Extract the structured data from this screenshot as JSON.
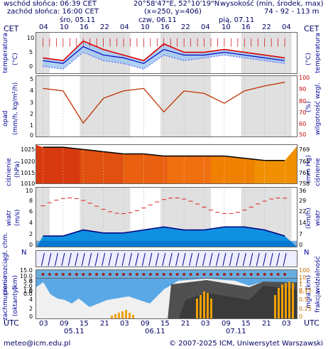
{
  "header": {
    "sunrise": "wschód słońca: 06:39 CET",
    "sunset": "zachód słońca: 16:00 CET",
    "coords": "20°58'47\"E, 52°10'19\"N",
    "grid": "(x=250,  y=406)",
    "alt_label": "wysokość (min, środek, max)",
    "alt_value": "74 - 92 - 113 m"
  },
  "tz_left": "CET",
  "tz_right": "CET",
  "tz_bottom_left": "UTC",
  "tz_bottom_right": "UTC",
  "days_top": [
    "śro, 05.11",
    "czw, 06.11",
    "pią, 07.11"
  ],
  "hours_top": [
    "04",
    "10",
    "16",
    "22",
    "04",
    "10",
    "16",
    "22",
    "04",
    "10",
    "16",
    "22",
    "04"
  ],
  "hours_bottom": [
    "03",
    "09",
    "15",
    "21",
    "03",
    "09",
    "15",
    "21",
    "03",
    "09",
    "15",
    "21",
    "03"
  ],
  "days_bottom": [
    "05.11",
    "06.11",
    "07.11"
  ],
  "panels": {
    "temp": {
      "label_left": "temperatura",
      "unit_left": "(°C)",
      "label_right": "temperatura",
      "unit_right": "(°C)",
      "ticks": [
        "10",
        "5",
        "0"
      ]
    },
    "precip": {
      "label_left": "opad",
      "unit_left": "(mm/h, kg/m²/h)",
      "label_right": "wilgotność wzgl.",
      "unit_right": "(%)",
      "ticks": [
        "5",
        "4",
        "3",
        "2",
        "1",
        "0"
      ],
      "ticks_right": [
        "100",
        "90",
        "80",
        "70",
        "60",
        "50"
      ]
    },
    "pressure": {
      "label_left": "ciśnienie",
      "unit_left": "(hPa)",
      "label_right": "ciśnienie",
      "unit_right": "(mm Hg)",
      "ticks": [
        "1025",
        "1020",
        "1015",
        "1010"
      ],
      "ticks_right": [
        "769",
        "765",
        "761",
        "758"
      ]
    },
    "wind": {
      "label_left": "wiatr",
      "unit_left": "(m/s)",
      "label_right": "wiatr",
      "unit_right": "(km/h)",
      "ticks": [
        "10",
        "8",
        "6",
        "4",
        "2",
        "0"
      ],
      "ticks_right": [
        "36",
        "29",
        "22",
        "14",
        "7",
        "0"
      ]
    },
    "winddir": {
      "label_left": "N",
      "label_right": "N"
    },
    "cloudbase": {
      "label_left": "pion. rozciągł. chm.",
      "unit_left": "(km)",
      "label_right": "widzialność",
      "unit_right": "(km)",
      "ticks": [
        "15.0",
        "10.0",
        "5.0",
        "2.0",
        "1.0",
        "0.0"
      ],
      "ticks_right": [
        "100",
        "10",
        "1",
        "0.1"
      ]
    },
    "clouds": {
      "label_left": "zachmurzenie",
      "unit_left": "(oktanty)",
      "label_right": "frakcja",
      "unit_right": "mgła",
      "ticks": [
        "8",
        "6",
        "4",
        "2",
        "0"
      ],
      "ticks_right": [
        "1",
        "0.75",
        "0.5",
        "0.25",
        "0"
      ]
    }
  },
  "footer": {
    "email": "meteo@icm.edu.pl",
    "copyright": "© 2007-2025 ICM, Uniwersytet Warszawski"
  },
  "chart_data": [
    {
      "type": "line",
      "title": "temperatura",
      "ylabel": "(°C)",
      "ylim": [
        -1,
        14
      ],
      "x_hours": [
        0,
        6,
        12,
        18,
        24,
        30,
        36,
        42,
        48,
        54,
        60,
        66,
        72
      ],
      "series": [
        {
          "values": [
            5,
            4,
            11,
            8,
            6,
            4,
            10,
            7,
            7,
            8,
            7,
            6,
            5
          ]
        },
        {
          "values": [
            4,
            3,
            9,
            6,
            5,
            3,
            8,
            6,
            6,
            7,
            6,
            5,
            4
          ]
        },
        {
          "values": [
            2,
            1,
            7,
            4,
            3,
            1,
            6,
            4,
            5,
            6,
            5,
            4,
            3
          ]
        }
      ]
    },
    {
      "type": "line",
      "title": "wilgotność wzgl.",
      "ylabel": "(%)",
      "ylim": [
        50,
        100
      ],
      "x_hours": [
        0,
        6,
        12,
        18,
        24,
        30,
        36,
        42,
        48,
        54,
        60,
        66,
        72
      ],
      "values": [
        90,
        88,
        62,
        82,
        88,
        90,
        71,
        88,
        86,
        78,
        88,
        92,
        95
      ]
    },
    {
      "type": "area",
      "title": "ciśnienie",
      "ylabel": "(hPa)",
      "ylim": [
        1010,
        1028
      ],
      "x_hours": [
        0,
        6,
        12,
        18,
        24,
        30,
        36,
        42,
        48,
        54,
        60,
        66,
        72
      ],
      "values": [
        1027,
        1027,
        1026,
        1025,
        1024,
        1024,
        1023,
        1023,
        1023,
        1023,
        1022,
        1021,
        1021
      ]
    },
    {
      "type": "area",
      "title": "wiatr",
      "ylabel": "(m/s)",
      "ylim": [
        0,
        10
      ],
      "x_hours": [
        0,
        6,
        12,
        18,
        24,
        30,
        36,
        42,
        48,
        54,
        60,
        66,
        72
      ],
      "values": [
        2,
        2,
        3,
        2.5,
        2.5,
        3,
        3.5,
        3,
        3,
        3.5,
        3.5,
        3,
        2
      ]
    }
  ]
}
